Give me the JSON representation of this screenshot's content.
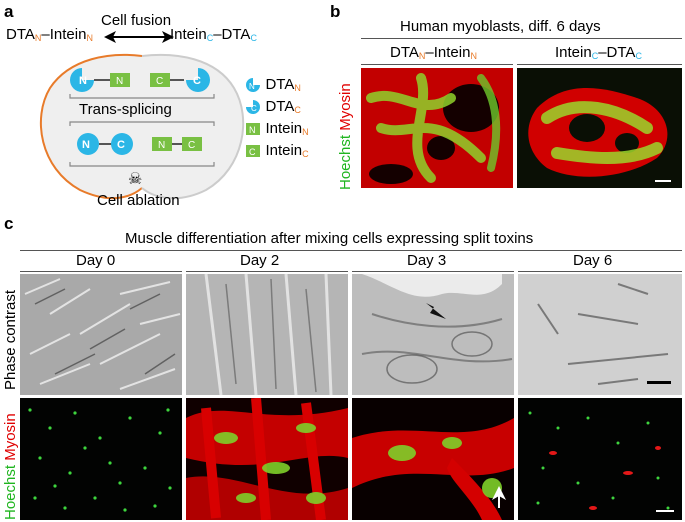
{
  "panel_a": {
    "label": "a",
    "left_construct": "DTA",
    "left_construct_mid": "–Intein",
    "sub_n": "N",
    "sub_c": "C",
    "right_construct": "Intein",
    "right_construct_mid": "–DTA",
    "fusion": "Cell fusion",
    "trans_splicing": "Trans-splicing",
    "ablation": "Cell ablation",
    "legend": [
      {
        "glyph": "N",
        "text": "DTA",
        "sub": "N"
      },
      {
        "glyph": "C",
        "text": "DTA",
        "sub": "C"
      },
      {
        "glyph": "N",
        "text": "Intein",
        "sub": "N"
      },
      {
        "glyph": "C",
        "text": "Intein",
        "sub": "C"
      }
    ],
    "colors": {
      "cyan": "#2bb6e6",
      "green": "#79c043",
      "orange": "#e87b2a"
    }
  },
  "panel_b": {
    "label": "b",
    "title": "Human myoblasts, diff. 6 days",
    "col1": "DTA",
    "col1_mid": "–Intein",
    "col2": "Intein",
    "col2_mid": "–DTA",
    "sub_n": "N",
    "sub_c": "C",
    "stain_green": "Hoechst",
    "stain_red": "Myosin"
  },
  "panel_c": {
    "label": "c",
    "title": "Muscle differentiation after mixing cells expressing split toxins",
    "days": [
      "Day 0",
      "Day 2",
      "Day 3",
      "Day 6"
    ],
    "row1": "Phase contrast",
    "stain_green": "Hoechst",
    "stain_red": "Myosin"
  }
}
